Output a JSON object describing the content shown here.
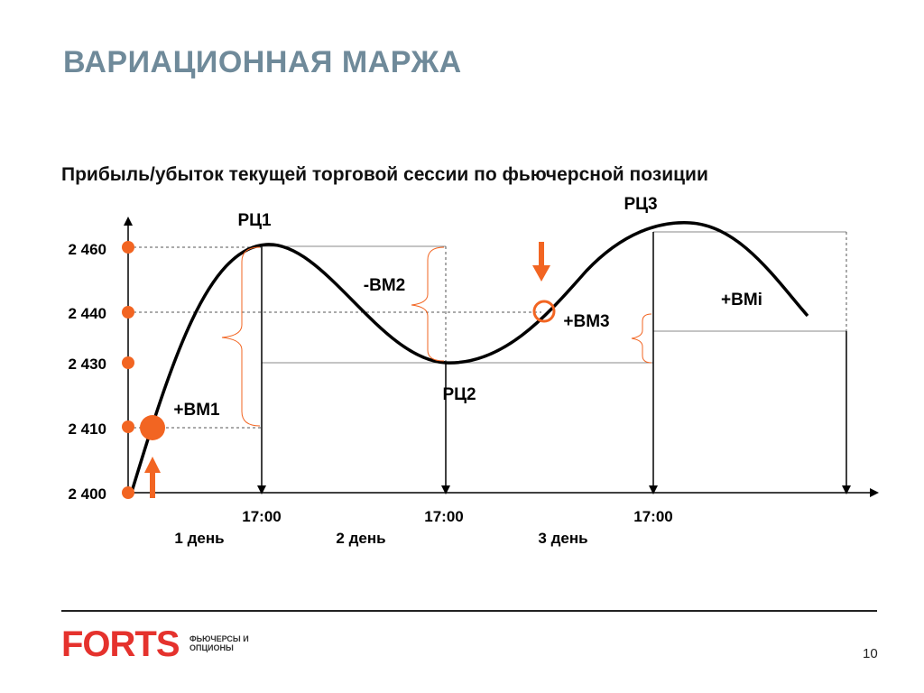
{
  "title": "ВАРИАЦИОННАЯ МАРЖА",
  "subtitle": "Прибыль/убыток текущей торговой сессии по фьючерсной позиции",
  "y_ticks": [
    "2 460",
    "2 440",
    "2 430",
    "2 410",
    "2 400"
  ],
  "x_ticks": [
    "17:00",
    "17:00",
    "17:00"
  ],
  "days": [
    "1 день",
    "2 день",
    "3 день"
  ],
  "points": {
    "rc1": "РЦ1",
    "rc2": "РЦ2",
    "rc3": "РЦ3"
  },
  "margins": {
    "vm1": "+ВМ1",
    "vm2": "-ВМ2",
    "vm3": "+ВМ3",
    "vmi": "+ВМi"
  },
  "footer": {
    "logo": "FORTS",
    "logo_sub": "ФЬЮЧЕРСЫ И ОПЦИОНЫ",
    "page_number": "10"
  },
  "colors": {
    "accent": "#f26522",
    "title": "#6f8a9a",
    "curve": "#000000",
    "logo": "#e5322d"
  }
}
